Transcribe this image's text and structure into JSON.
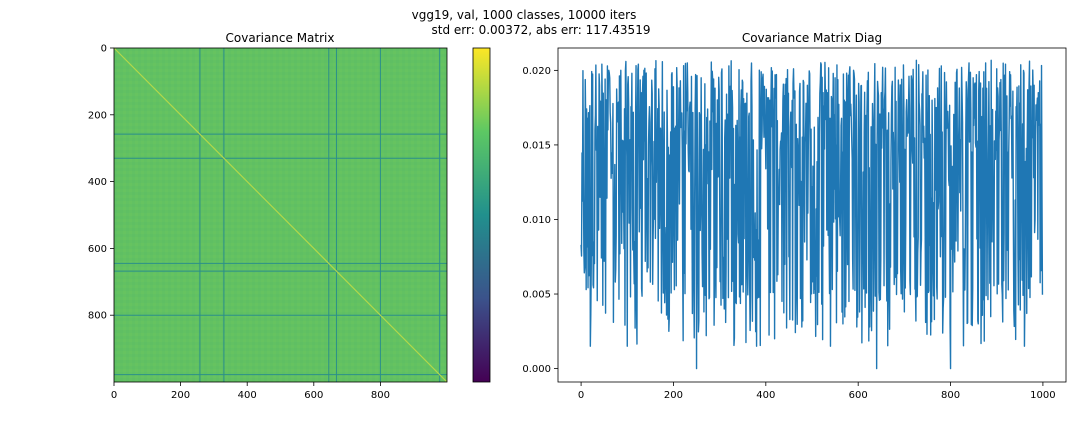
{
  "suptitle": {
    "line1": "vgg19, val, 1000 classes, 10000 iters",
    "line2": "std err: 0.00372, abs err: 117.43519"
  },
  "colors": {
    "matrix_fill": "#62c162",
    "matrix_band": "#2b8f8a",
    "matrix_diag": "#b4d84a",
    "line_color": "#1f77b4",
    "colorbar_stops": [
      "#440154",
      "#3b528b",
      "#21908d",
      "#5dc863",
      "#fde725"
    ]
  },
  "chart_data": [
    {
      "type": "heatmap",
      "title": "Covariance Matrix",
      "size": 1000,
      "x_ticks": [
        0,
        200,
        400,
        600,
        800
      ],
      "y_ticks": [
        0,
        200,
        400,
        600,
        800
      ],
      "xlim": [
        0,
        1000
      ],
      "ylim": [
        1000,
        0
      ],
      "background_value": "near-uniform high covariance (green)",
      "low_value_bands": [
        258,
        330,
        645,
        668,
        800,
        978
      ],
      "diagonal": "slightly brighter yellow-green",
      "colorbar": {
        "cmap": "viridis",
        "tick_labels": []
      }
    },
    {
      "type": "line",
      "title": "Covariance Matrix Diag",
      "xlabel": "",
      "ylabel": "",
      "xlim": [
        -50,
        1050
      ],
      "ylim": [
        -0.0009,
        0.0215
      ],
      "x_ticks": [
        0,
        200,
        400,
        600,
        800,
        1000
      ],
      "y_ticks": [
        0.0,
        0.005,
        0.01,
        0.015,
        0.02
      ],
      "y_tick_labels": [
        "0.000",
        "0.005",
        "0.010",
        "0.015",
        "0.020"
      ],
      "series": [
        {
          "name": "diag",
          "n": 1000,
          "value_range": [
            0.0,
            0.0207
          ],
          "approx_mean": 0.0135,
          "values_every_10": [
            0.0083,
            0.0166,
            0.0015,
            0.016,
            0.019,
            0.0072,
            0.02,
            0.0031,
            0.0178,
            0.0105,
            0.0015,
            0.0198,
            0.0042,
            0.0185,
            0.013,
            0.0058,
            0.0201,
            0.0094,
            0.0172,
            0.0025,
            0.0189,
            0.014,
            0.0066,
            0.0205,
            0.0112,
            0.0,
            0.0195,
            0.015,
            0.008,
            0.0188,
            0.012,
            0.004,
            0.0203,
            0.0161,
            0.009,
            0.0192,
            0.0071,
            0.0176,
            0.0015,
            0.0199,
            0.0134,
            0.0051,
            0.0197,
            0.011,
            0.0183,
            0.0075,
            0.0201,
            0.0145,
            0.0032,
            0.019,
            0.0122,
            0.0062,
            0.0204,
            0.0167,
            0.0015,
            0.0195,
            0.01,
            0.018,
            0.0045,
            0.02,
            0.0138,
            0.0079,
            0.0193,
            0.0115,
            0.0,
            0.0185,
            0.0155,
            0.0068,
            0.0202,
            0.0125,
            0.0038,
            0.0196,
            0.017,
            0.0088,
            0.0199,
            0.0108,
            0.018,
            0.0055,
            0.0203,
            0.0142,
            0.0,
            0.0192,
            0.0118,
            0.006,
            0.0205,
            0.0163,
            0.003,
            0.0188,
            0.0133,
            0.0085,
            0.0201,
            0.0152,
            0.0047,
            0.0197,
            0.0113,
            0.0178,
            0.0015,
            0.019,
            0.0128,
            0.0185
          ]
        }
      ]
    }
  ]
}
